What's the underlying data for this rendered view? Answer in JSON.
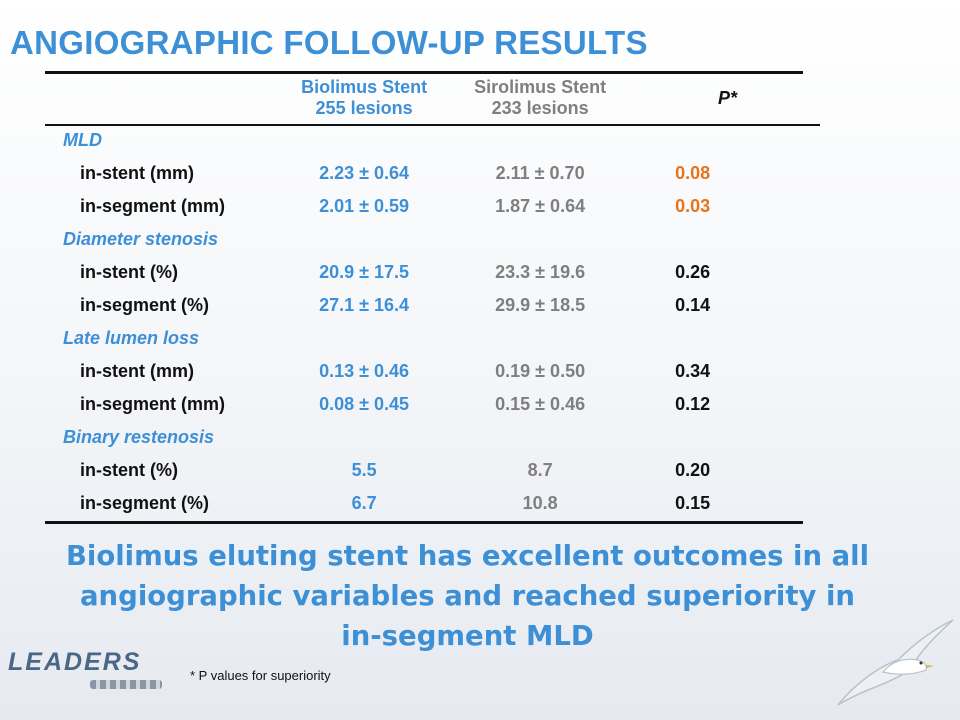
{
  "title": "ANGIOGRAPHIC FOLLOW-UP RESULTS",
  "table": {
    "headers": {
      "biolimus_line1": "Biolimus Stent",
      "biolimus_line2": "255 lesions",
      "sirolimus_line1": "Sirolimus Stent",
      "sirolimus_line2": "233 lesions",
      "p": "P*"
    },
    "groups": [
      {
        "label": "MLD",
        "rows": [
          {
            "label": "in-stent (mm)",
            "biolimus": "2.23 ± 0.64",
            "sirolimus": "2.11 ± 0.70",
            "p": "0.08"
          },
          {
            "label": "in-segment (mm)",
            "biolimus": "2.01 ± 0.59",
            "sirolimus": "1.87 ± 0.64",
            "p": "0.03"
          }
        ]
      },
      {
        "label": "Diameter stenosis",
        "rows": [
          {
            "label": "in-stent (%)",
            "biolimus": "20.9 ± 17.5",
            "sirolimus": "23.3 ± 19.6",
            "p": "0.26"
          },
          {
            "label": "in-segment (%)",
            "biolimus": "27.1 ± 16.4",
            "sirolimus": "29.9 ± 18.5",
            "p": "0.14"
          }
        ]
      },
      {
        "label": "Late lumen loss",
        "rows": [
          {
            "label": "in-stent (mm)",
            "biolimus": "0.13 ± 0.46",
            "sirolimus": "0.19 ± 0.50",
            "p": "0.34"
          },
          {
            "label": "in-segment (mm)",
            "biolimus": "0.08 ± 0.45",
            "sirolimus": "0.15 ± 0.46",
            "p": "0.12"
          }
        ]
      },
      {
        "label": "Binary restenosis",
        "rows": [
          {
            "label": "in-stent (%)",
            "biolimus": "5.5",
            "sirolimus": "8.7",
            "p": "0.20"
          },
          {
            "label": "in-segment (%)",
            "biolimus": "6.7",
            "sirolimus": "10.8",
            "p": "0.15"
          }
        ]
      }
    ]
  },
  "conclusion_line1": "Biolimus eluting stent has  excellent outcomes in all",
  "conclusion_line2": "angiographic variables and reached superiority in",
  "conclusion_line3": "in-segment MLD",
  "footnote": "* P values for superiority",
  "logo_text": "LEADERS",
  "colors": {
    "accent_blue": "#3d8fd6",
    "gray": "#7f7f7f",
    "highlight_orange": "#e8731a"
  },
  "icons": [
    "leaders-logo",
    "seagull-icon"
  ]
}
